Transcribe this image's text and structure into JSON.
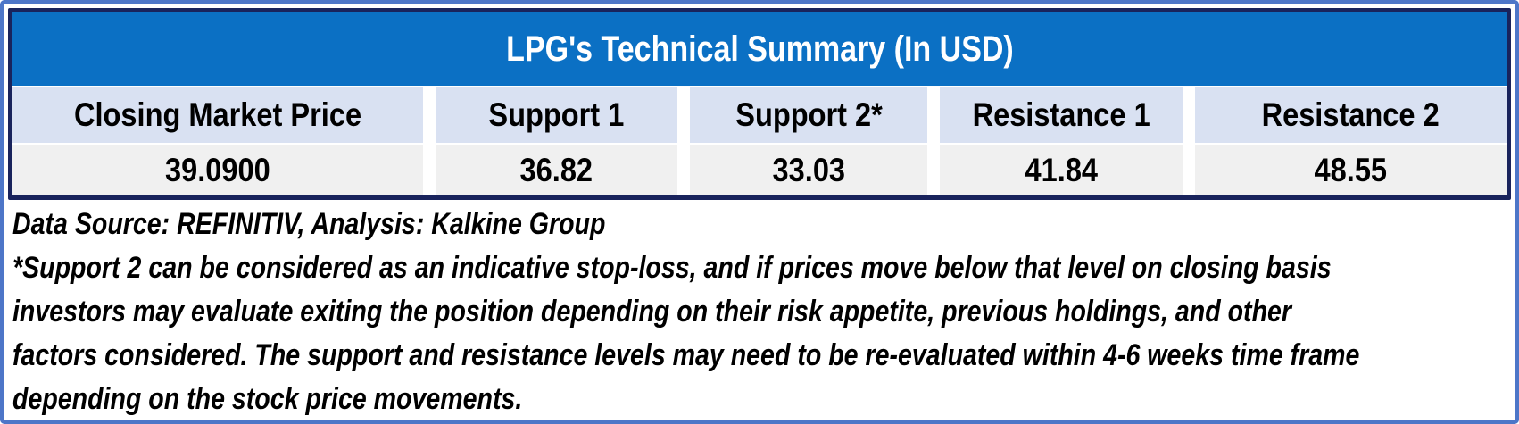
{
  "chart_data": {
    "type": "table",
    "title": "LPG's Technical Summary (In USD)",
    "columns": [
      "Closing Market Price",
      "Support 1",
      "Support 2*",
      "Resistance 1",
      "Resistance 2"
    ],
    "rows": [
      [
        "39.0900",
        "36.82",
        "33.03",
        "41.84",
        "48.55"
      ]
    ],
    "data_source_note": "Data Source: REFINITIV, Analysis: Kalkine Group",
    "footnote_lines": [
      "*Support 2 can be considered as an indicative stop-loss, and if prices move below that level on closing basis",
      "investors may evaluate exiting the position depending on their risk appetite, previous holdings, and other",
      "factors considered. The support and resistance levels may need to be re-evaluated within 4-6 weeks time frame",
      "depending on the stock price movements."
    ],
    "layout_hints": {
      "legend": "none",
      "grid": "off",
      "column_gutters": "white vertical gaps between columns"
    }
  },
  "colors": {
    "title_bar_blue": "#0B70C4",
    "header_cell_lavender": "#D9E1F2",
    "value_cell_gray": "#F0F0F0",
    "table_border_navy": "#19235C",
    "outer_border_blue": "#4D76C8",
    "title_text": "#FFFFFF",
    "body_text": "#000000"
  }
}
